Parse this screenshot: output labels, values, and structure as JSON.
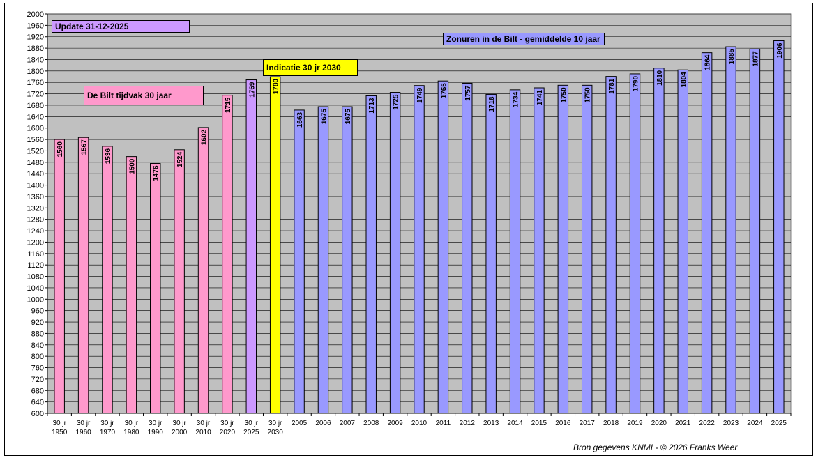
{
  "chart_data": {
    "type": "bar",
    "title": "Zonuren in de Bilt - gemiddelde 10 jaar",
    "categories": [
      [
        "30 jr",
        "1950"
      ],
      [
        "30 jr",
        "1960"
      ],
      [
        "30 jr",
        "1970"
      ],
      [
        "30 jr",
        "1980"
      ],
      [
        "30 jr",
        "1990"
      ],
      [
        "30 jr",
        "2000"
      ],
      [
        "30 jr",
        "2010"
      ],
      [
        "30 jr",
        "2020"
      ],
      [
        "30 jr",
        "2025"
      ],
      [
        "30 jr",
        "2030"
      ],
      [
        "",
        "2005"
      ],
      [
        "",
        "2006"
      ],
      [
        "",
        "2007"
      ],
      [
        "",
        "2008"
      ],
      [
        "",
        "2009"
      ],
      [
        "",
        "2010"
      ],
      [
        "",
        "2011"
      ],
      [
        "",
        "2012"
      ],
      [
        "",
        "2013"
      ],
      [
        "",
        "2014"
      ],
      [
        "",
        "2015"
      ],
      [
        "",
        "2016"
      ],
      [
        "",
        "2017"
      ],
      [
        "",
        "2018"
      ],
      [
        "",
        "2019"
      ],
      [
        "",
        "2020"
      ],
      [
        "",
        "2021"
      ],
      [
        "",
        "2022"
      ],
      [
        "",
        "2023"
      ],
      [
        "",
        "2024"
      ],
      [
        "",
        "2025"
      ]
    ],
    "values": [
      1560,
      1567,
      1536,
      1500,
      1476,
      1524,
      1602,
      1715,
      1769,
      1780,
      1663,
      1675,
      1675,
      1713,
      1725,
      1749,
      1765,
      1757,
      1718,
      1734,
      1741,
      1750,
      1750,
      1781,
      1790,
      1810,
      1804,
      1864,
      1885,
      1877,
      1906
    ],
    "bar_groups": [
      "30jr",
      "30jr",
      "30jr",
      "30jr",
      "30jr",
      "30jr",
      "30jr",
      "30jr",
      "30jr-2025",
      "indicatie",
      "10jr",
      "10jr",
      "10jr",
      "10jr",
      "10jr",
      "10jr",
      "10jr",
      "10jr",
      "10jr",
      "10jr",
      "10jr",
      "10jr",
      "10jr",
      "10jr",
      "10jr",
      "10jr",
      "10jr",
      "10jr",
      "10jr",
      "10jr",
      "10jr"
    ],
    "colors": {
      "30jr": "#ff99cc",
      "30jr-2025": "#cc99ff",
      "indicatie": "#ffff00",
      "10jr": "#9999ff",
      "plot_bg": "#c0c0c0",
      "update_box": "#cc99ff"
    },
    "ylim": [
      600,
      2000
    ],
    "ytick_step": 40,
    "grid": true,
    "xlabel": "",
    "ylabel": "",
    "annotations": {
      "update": "Update 31-12-2025",
      "tijdvak": "De Bilt tijdvak 30 jaar",
      "indicatie": "Indicatie 30 jr 2030",
      "title_box": "Zonuren in de Bilt - gemiddelde 10 jaar"
    },
    "source": "Bron gegevens KNMI  - © 2026 Franks Weer"
  }
}
